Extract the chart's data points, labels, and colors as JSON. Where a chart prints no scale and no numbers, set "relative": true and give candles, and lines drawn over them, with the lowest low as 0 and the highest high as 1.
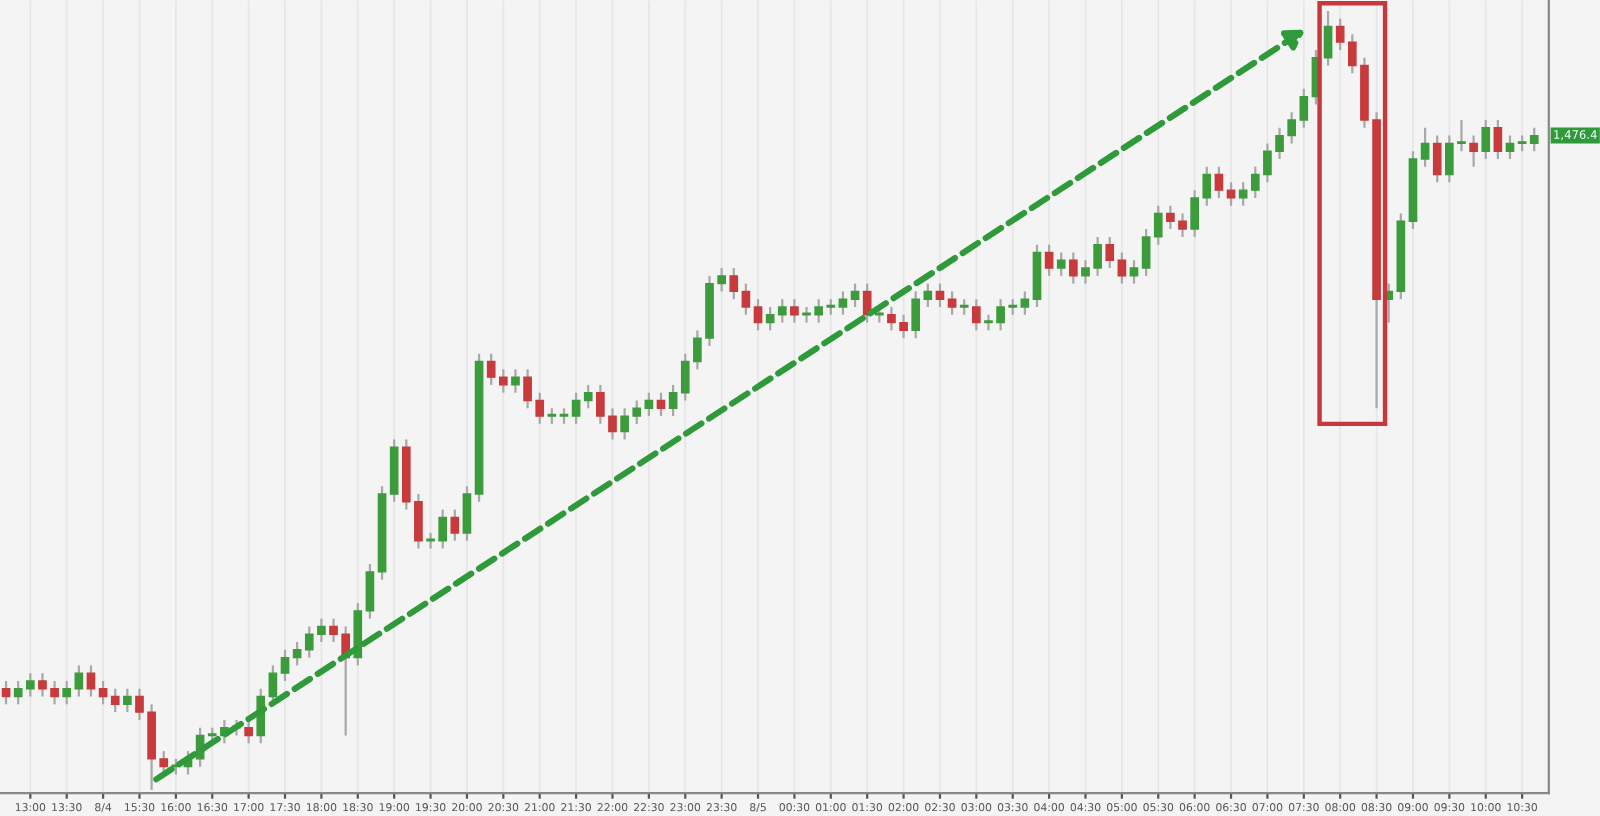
{
  "chart_data": {
    "type": "candlestick",
    "relative": true,
    "grid": "x",
    "colors": [
      "#c83a3c",
      "#3c9c3c",
      "#3c9c3c",
      "#c83a3c",
      "#c83a3c",
      "#3c9c3c",
      "#3c9c3c",
      "#c83a3c",
      "#c83a3c",
      "#c83a3c",
      "#3c9c3c",
      "#c83a3c",
      "#c83a3c",
      "#c83a3c",
      "#3c9c3c",
      "#3c9c3c",
      "#3c9c3c",
      "#3c9c3c",
      "#3c9c3c",
      "#3c9c3c",
      "#c83a3c",
      "#3c9c3c",
      "#3c9c3c",
      "#3c9c3c",
      "#3c9c3c",
      "#3c9c3c",
      "#3c9c3c",
      "#c83a3c",
      "#c83a3c",
      "#3c9c3c",
      "#3c9c3c",
      "#3c9c3c",
      "#3c9c3c",
      "#c83a3c",
      "#c83a3c",
      "#3c9c3c",
      "#3c9c3c",
      "#c83a3c",
      "#3c9c3c",
      "#3c9c3c",
      "#c83a3c",
      "#c83a3c",
      "#3c9c3c",
      "#c83a3c",
      "#c83a3c",
      "#3c9c3c",
      "#3c9c3c",
      "#3c9c3c",
      "#3c9c3c",
      "#c83a3c",
      "#c83a3c",
      "#3c9c3c",
      "#3c9c3c",
      "#3c9c3c",
      "#c83a3c",
      "#3c9c3c",
      "#3c9c3c",
      "#3c9c3c",
      "#3c9c3c",
      "#3c9c3c",
      "#c83a3c",
      "#c83a3c",
      "#c83a3c",
      "#3c9c3c",
      "#3c9c3c",
      "#c83a3c",
      "#3c9c3c",
      "#3c9c3c",
      "#3c9c3c",
      "#3c9c3c",
      "#3c9c3c",
      "#c83a3c",
      "#3c9c3c",
      "#c83a3c",
      "#c83a3c",
      "#3c9c3c",
      "#3c9c3c",
      "#c83a3c",
      "#c83a3c",
      "#3c9c3c",
      "#c83a3c",
      "#3c9c3c",
      "#3c9c3c",
      "#3c9c3c",
      "#3c9c3c",
      "#3c9c3c",
      "#c83a3c",
      "#3c9c3c",
      "#c83a3c",
      "#3c9c3c",
      "#3c9c3c",
      "#c83a3c",
      "#c83a3c",
      "#3c9c3c",
      "#3c9c3c",
      "#3c9c3c",
      "#c83a3c",
      "#c83a3c",
      "#3c9c3c",
      "#3c9c3c",
      "#c83a3c",
      "#c83a3c",
      "#3c9c3c",
      "#3c9c3c",
      "#3c9c3c",
      "#3c9c3c",
      "#3c9c3c",
      "#3c9c3c",
      "#3c9c3c",
      "#3c9c3c",
      "#c83a3c",
      "#c83a3c",
      "#c83a3c",
      "#c83a3c",
      "#3c9c3c",
      "#3c9c3c",
      "#3c9c3c",
      "#3c9c3c",
      "#c83a3c",
      "#3c9c3c",
      "#3c9c3c",
      "#c83a3c",
      "#3c9c3c",
      "#c83a3c",
      "#3c9c3c",
      "#3c9c3c",
      "#3c9c3c"
    ],
    "annotations": [
      "1,476.4"
    ],
    "categories": [
      null,
      null,
      "13:00",
      null,
      null,
      "13:30",
      null,
      null,
      "8/4",
      null,
      null,
      "15:30",
      null,
      null,
      "16:00",
      null,
      null,
      "16:30",
      null,
      null,
      "17:00",
      null,
      null,
      "17:30",
      null,
      null,
      "18:00",
      null,
      null,
      "18:30",
      null,
      null,
      "19:00",
      null,
      null,
      "19:30",
      null,
      null,
      "20:00",
      null,
      null,
      "20:30",
      null,
      null,
      "21:00",
      null,
      null,
      "21:30",
      null,
      null,
      "22:00",
      null,
      null,
      "22:30",
      null,
      null,
      "23:00",
      null,
      null,
      "23:30",
      null,
      null,
      "8/5",
      null,
      null,
      "00:30",
      null,
      null,
      "01:00",
      null,
      null,
      "01:30",
      null,
      null,
      "02:00",
      null,
      null,
      "02:30",
      null,
      null,
      "03:00",
      null,
      null,
      "03:30",
      null,
      null,
      "04:00",
      null,
      null,
      "04:30",
      null,
      null,
      "05:00",
      null,
      null,
      "05:30",
      null,
      null,
      "06:00",
      null,
      null,
      "06:30",
      null,
      null,
      "07:00",
      null,
      null,
      "07:30",
      null,
      null,
      "08:00",
      null,
      null,
      "08:30",
      null,
      null,
      "09:00",
      null,
      null,
      "09:30",
      null,
      null,
      "10:00",
      null,
      null,
      "10:30",
      null
    ],
    "ohlc": [
      [
        0.13,
        0.14,
        0.11,
        0.12
      ],
      [
        0.12,
        0.14,
        0.11,
        0.13
      ],
      [
        0.13,
        0.15,
        0.12,
        0.14
      ],
      [
        0.14,
        0.15,
        0.12,
        0.13
      ],
      [
        0.13,
        0.14,
        0.11,
        0.12
      ],
      [
        0.12,
        0.14,
        0.11,
        0.13
      ],
      [
        0.13,
        0.16,
        0.12,
        0.15
      ],
      [
        0.15,
        0.16,
        0.12,
        0.13
      ],
      [
        0.13,
        0.14,
        0.11,
        0.12
      ],
      [
        0.12,
        0.13,
        0.1,
        0.11
      ],
      [
        0.11,
        0.13,
        0.1,
        0.12
      ],
      [
        0.12,
        0.13,
        0.09,
        0.1
      ],
      [
        0.1,
        0.11,
        0,
        0.04
      ],
      [
        0.04,
        0.05,
        0.02,
        0.03
      ],
      [
        0.03,
        0.04,
        0.02,
        0.03
      ],
      [
        0.03,
        0.05,
        0.02,
        0.04
      ],
      [
        0.04,
        0.08,
        0.03,
        0.07
      ],
      [
        0.07,
        0.08,
        0.06,
        0.07
      ],
      [
        0.07,
        0.09,
        0.06,
        0.08
      ],
      [
        0.08,
        0.09,
        0.07,
        0.08
      ],
      [
        0.08,
        0.09,
        0.06,
        0.07
      ],
      [
        0.07,
        0.13,
        0.06,
        0.12
      ],
      [
        0.12,
        0.16,
        0.11,
        0.15
      ],
      [
        0.15,
        0.18,
        0.14,
        0.17
      ],
      [
        0.17,
        0.19,
        0.16,
        0.18
      ],
      [
        0.18,
        0.21,
        0.17,
        0.2
      ],
      [
        0.2,
        0.22,
        0.19,
        0.21
      ],
      [
        0.21,
        0.22,
        0.19,
        0.2
      ],
      [
        0.2,
        0.21,
        0.07,
        0.17
      ],
      [
        0.17,
        0.24,
        0.16,
        0.23
      ],
      [
        0.23,
        0.29,
        0.22,
        0.28
      ],
      [
        0.28,
        0.39,
        0.27,
        0.38
      ],
      [
        0.38,
        0.45,
        0.37,
        0.44
      ],
      [
        0.44,
        0.45,
        0.36,
        0.37
      ],
      [
        0.37,
        0.38,
        0.31,
        0.32
      ],
      [
        0.32,
        0.33,
        0.31,
        0.32
      ],
      [
        0.32,
        0.36,
        0.31,
        0.35
      ],
      [
        0.35,
        0.36,
        0.32,
        0.33
      ],
      [
        0.33,
        0.39,
        0.32,
        0.38
      ],
      [
        0.38,
        0.56,
        0.37,
        0.55
      ],
      [
        0.55,
        0.56,
        0.52,
        0.53
      ],
      [
        0.53,
        0.54,
        0.51,
        0.52
      ],
      [
        0.52,
        0.54,
        0.51,
        0.53
      ],
      [
        0.53,
        0.54,
        0.49,
        0.5
      ],
      [
        0.5,
        0.51,
        0.47,
        0.48
      ],
      [
        0.48,
        0.49,
        0.47,
        0.48
      ],
      [
        0.48,
        0.49,
        0.47,
        0.48
      ],
      [
        0.48,
        0.51,
        0.47,
        0.5
      ],
      [
        0.5,
        0.52,
        0.49,
        0.51
      ],
      [
        0.51,
        0.52,
        0.47,
        0.48
      ],
      [
        0.48,
        0.49,
        0.45,
        0.46
      ],
      [
        0.46,
        0.49,
        0.45,
        0.48
      ],
      [
        0.48,
        0.5,
        0.47,
        0.49
      ],
      [
        0.49,
        0.51,
        0.48,
        0.5
      ],
      [
        0.5,
        0.51,
        0.48,
        0.49
      ],
      [
        0.49,
        0.52,
        0.48,
        0.51
      ],
      [
        0.51,
        0.56,
        0.5,
        0.55
      ],
      [
        0.55,
        0.59,
        0.54,
        0.58
      ],
      [
        0.58,
        0.66,
        0.57,
        0.65
      ],
      [
        0.65,
        0.67,
        0.64,
        0.66
      ],
      [
        0.66,
        0.67,
        0.63,
        0.64
      ],
      [
        0.64,
        0.65,
        0.61,
        0.62
      ],
      [
        0.62,
        0.63,
        0.59,
        0.6
      ],
      [
        0.6,
        0.62,
        0.59,
        0.61
      ],
      [
        0.61,
        0.63,
        0.6,
        0.62
      ],
      [
        0.62,
        0.63,
        0.6,
        0.61
      ],
      [
        0.61,
        0.62,
        0.6,
        0.61
      ],
      [
        0.61,
        0.63,
        0.6,
        0.62
      ],
      [
        0.62,
        0.63,
        0.61,
        0.62
      ],
      [
        0.62,
        0.64,
        0.61,
        0.63
      ],
      [
        0.63,
        0.65,
        0.62,
        0.64
      ],
      [
        0.64,
        0.65,
        0.6,
        0.61
      ],
      [
        0.61,
        0.62,
        0.6,
        0.61
      ],
      [
        0.61,
        0.62,
        0.59,
        0.6
      ],
      [
        0.6,
        0.61,
        0.58,
        0.59
      ],
      [
        0.59,
        0.64,
        0.58,
        0.63
      ],
      [
        0.63,
        0.65,
        0.62,
        0.64
      ],
      [
        0.64,
        0.65,
        0.62,
        0.63
      ],
      [
        0.63,
        0.64,
        0.61,
        0.62
      ],
      [
        0.62,
        0.63,
        0.61,
        0.62
      ],
      [
        0.62,
        0.63,
        0.59,
        0.6
      ],
      [
        0.6,
        0.61,
        0.59,
        0.6
      ],
      [
        0.6,
        0.63,
        0.59,
        0.62
      ],
      [
        0.62,
        0.63,
        0.61,
        0.62
      ],
      [
        0.62,
        0.64,
        0.61,
        0.63
      ],
      [
        0.63,
        0.7,
        0.62,
        0.69
      ],
      [
        0.69,
        0.7,
        0.66,
        0.67
      ],
      [
        0.67,
        0.69,
        0.66,
        0.68
      ],
      [
        0.68,
        0.69,
        0.65,
        0.66
      ],
      [
        0.66,
        0.68,
        0.65,
        0.67
      ],
      [
        0.67,
        0.71,
        0.66,
        0.7
      ],
      [
        0.7,
        0.71,
        0.67,
        0.68
      ],
      [
        0.68,
        0.69,
        0.65,
        0.66
      ],
      [
        0.66,
        0.68,
        0.65,
        0.67
      ],
      [
        0.67,
        0.72,
        0.66,
        0.71
      ],
      [
        0.71,
        0.75,
        0.7,
        0.74
      ],
      [
        0.74,
        0.75,
        0.72,
        0.73
      ],
      [
        0.73,
        0.74,
        0.71,
        0.72
      ],
      [
        0.72,
        0.77,
        0.71,
        0.76
      ],
      [
        0.76,
        0.8,
        0.75,
        0.79
      ],
      [
        0.79,
        0.8,
        0.76,
        0.77
      ],
      [
        0.77,
        0.78,
        0.75,
        0.76
      ],
      [
        0.76,
        0.78,
        0.75,
        0.77
      ],
      [
        0.77,
        0.8,
        0.76,
        0.79
      ],
      [
        0.79,
        0.83,
        0.78,
        0.82
      ],
      [
        0.82,
        0.85,
        0.81,
        0.84
      ],
      [
        0.84,
        0.87,
        0.83,
        0.86
      ],
      [
        0.86,
        0.9,
        0.85,
        0.89
      ],
      [
        0.89,
        0.95,
        0.88,
        0.94
      ],
      [
        0.94,
        1,
        0.93,
        0.98
      ],
      [
        0.98,
        0.99,
        0.95,
        0.96
      ],
      [
        0.96,
        0.97,
        0.92,
        0.93
      ],
      [
        0.93,
        0.94,
        0.85,
        0.86
      ],
      [
        0.86,
        0.87,
        0.49,
        0.63
      ],
      [
        0.63,
        0.65,
        0.6,
        0.64
      ],
      [
        0.64,
        0.74,
        0.63,
        0.73
      ],
      [
        0.73,
        0.82,
        0.72,
        0.81
      ],
      [
        0.81,
        0.85,
        0.8,
        0.83
      ],
      [
        0.83,
        0.84,
        0.78,
        0.79
      ],
      [
        0.79,
        0.84,
        0.78,
        0.83
      ],
      [
        0.83,
        0.86,
        0.82,
        0.83
      ],
      [
        0.83,
        0.84,
        0.8,
        0.82
      ],
      [
        0.82,
        0.86,
        0.81,
        0.85
      ],
      [
        0.85,
        0.86,
        0.81,
        0.82
      ],
      [
        0.82,
        0.84,
        0.81,
        0.83
      ],
      [
        0.83,
        0.84,
        0.82,
        0.83
      ],
      [
        0.83,
        0.85,
        0.82,
        0.84
      ]
    ]
  }
}
